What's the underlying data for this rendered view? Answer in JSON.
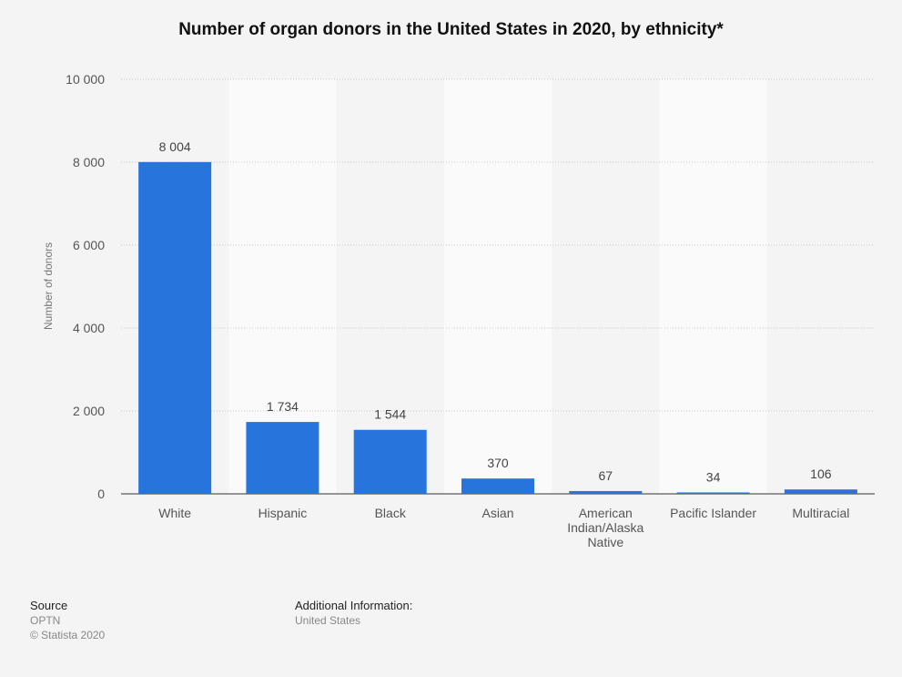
{
  "chart_data": {
    "type": "bar",
    "title": "Number of organ donors in the United States in 2020, by ethnicity*",
    "ylabel": "Number of donors",
    "xlabel": "",
    "categories": [
      "White",
      "Hispanic",
      "Black",
      "Asian",
      "American Indian/Alaska Native",
      "Pacific Islander",
      "Multiracial"
    ],
    "category_lines": [
      [
        "White"
      ],
      [
        "Hispanic"
      ],
      [
        "Black"
      ],
      [
        "Asian"
      ],
      [
        "American",
        "Indian/Alaska",
        "Native"
      ],
      [
        "Pacific Islander"
      ],
      [
        "Multiracial"
      ]
    ],
    "values": [
      8004,
      1734,
      1544,
      370,
      67,
      34,
      106
    ],
    "value_labels": [
      "8 004",
      "1 734",
      "1 544",
      "370",
      "67",
      "34",
      "106"
    ],
    "ylim": [
      0,
      10000
    ],
    "yticks": [
      0,
      2000,
      4000,
      6000,
      8000,
      10000
    ],
    "ytick_labels": [
      "0",
      "2 000",
      "4 000",
      "6 000",
      "8 000",
      "10 000"
    ],
    "grid": true,
    "legend": "none",
    "bar_color": "#2874dd"
  },
  "footer": {
    "source_heading": "Source",
    "source_name": "OPTN",
    "copyright": "© Statista 2020",
    "info_heading": "Additional Information:",
    "info_text": "United States"
  }
}
